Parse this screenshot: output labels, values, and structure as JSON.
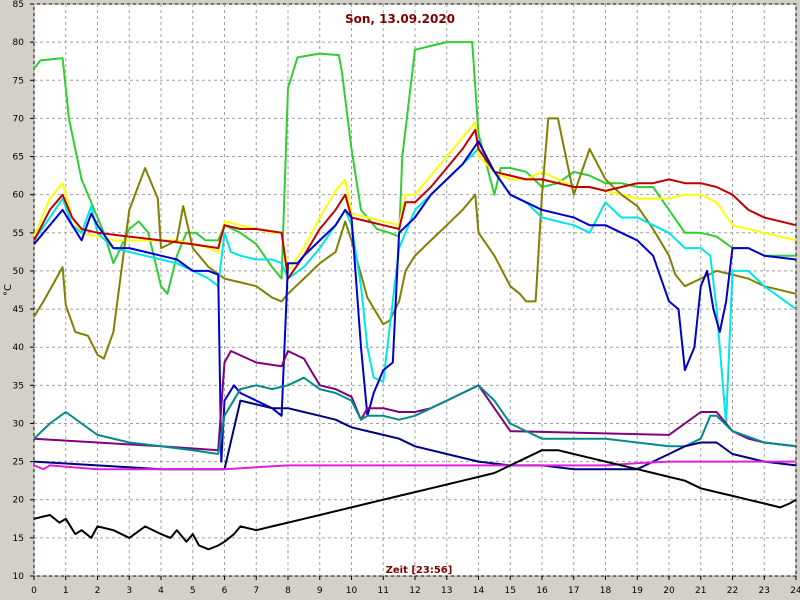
{
  "chart_data": {
    "type": "line",
    "title": "Son, 13.09.2020",
    "xlabel": "Zeit [23:56]",
    "ylabel": "°C",
    "xlim": [
      0,
      24
    ],
    "ylim": [
      10,
      85
    ],
    "xticks": [
      "0",
      "1",
      "2",
      "3",
      "4",
      "5",
      "6",
      "7",
      "8",
      "9",
      "10",
      "11",
      "12",
      "13",
      "14",
      "15",
      "16",
      "17",
      "18",
      "19",
      "20",
      "21",
      "22",
      "23",
      "24"
    ],
    "yticks": [
      "10",
      "15",
      "20",
      "25",
      "30",
      "35",
      "40",
      "45",
      "50",
      "55",
      "60",
      "65",
      "70",
      "75",
      "80",
      "85"
    ],
    "grid": true,
    "colors": {
      "background": "#ffffff",
      "frame": "#d4d0c8",
      "grid": "#a0a0a0"
    },
    "series": [
      {
        "color": "#32cd32",
        "x": [
          0,
          0.2,
          0.9,
          1.1,
          1.5,
          2.2,
          2.5,
          3.0,
          3.3,
          3.6,
          4.0,
          4.2,
          4.5,
          4.8,
          5.1,
          5.4,
          5.8,
          6.0,
          6.5,
          7.0,
          7.5,
          7.8,
          8.0,
          8.3,
          9.0,
          9.6,
          9.7,
          10.0,
          10.3,
          10.8,
          11.2,
          11.5,
          11.6,
          12.0,
          12.5,
          13.0,
          13.8,
          14.0,
          14.5,
          14.7,
          15.0,
          15.5,
          16.0,
          16.5,
          17.0,
          17.5,
          18.0,
          18.5,
          19.0,
          19.5,
          20.0,
          20.5,
          21.0,
          21.5,
          22.0,
          22.5,
          23.0,
          24.0
        ],
        "y": [
          76.5,
          77.6,
          77.9,
          70.0,
          62.0,
          55.0,
          51.0,
          55.5,
          56.5,
          55.0,
          48.0,
          47.0,
          52.0,
          55.0,
          55.0,
          54.0,
          54.0,
          56.0,
          55.0,
          53.5,
          50.5,
          49.0,
          74.0,
          78.0,
          78.5,
          78.3,
          76.0,
          66.0,
          58.0,
          55.5,
          55.0,
          54.5,
          65.0,
          79.0,
          79.5,
          80.0,
          80.0,
          68.0,
          60.0,
          63.5,
          63.5,
          63.0,
          61.0,
          61.5,
          63.0,
          62.5,
          61.5,
          61.5,
          61.0,
          61.0,
          58.0,
          55.0,
          55.0,
          54.5,
          53.0,
          53.0,
          52.0,
          52.0
        ]
      },
      {
        "color": "#ffff00",
        "x": [
          0,
          0.5,
          0.9,
          1.2,
          1.5,
          2.0,
          2.5,
          3.0,
          3.5,
          4.0,
          4.5,
          5.0,
          5.5,
          5.8,
          6.0,
          6.5,
          7.0,
          7.5,
          7.8,
          8.0,
          8.5,
          9.0,
          9.5,
          9.8,
          10.0,
          10.5,
          11.0,
          11.5,
          11.7,
          12.0,
          12.5,
          13.0,
          13.5,
          13.9,
          14.0,
          14.5,
          15.0,
          15.5,
          16.0,
          16.5,
          17.0,
          17.5,
          18.0,
          18.5,
          19.0,
          19.5,
          20.0,
          20.5,
          21.0,
          21.5,
          22.0,
          22.5,
          23.0,
          24.0
        ],
        "y": [
          54.5,
          59.5,
          61.5,
          57.0,
          55.0,
          54.5,
          54.0,
          54.0,
          54.0,
          54.0,
          54.0,
          53.5,
          53.0,
          52.5,
          56.5,
          56.0,
          55.5,
          55.0,
          55.0,
          50.0,
          53.0,
          57.0,
          60.5,
          62.0,
          57.5,
          57.0,
          56.5,
          56.0,
          60.0,
          60.0,
          62.5,
          65.0,
          67.5,
          69.5,
          65.0,
          63.0,
          62.0,
          62.0,
          63.0,
          62.0,
          61.0,
          61.0,
          60.5,
          60.0,
          59.5,
          59.5,
          59.5,
          60.0,
          60.0,
          59.0,
          56.0,
          55.5,
          55.0,
          54.0
        ]
      },
      {
        "color": "#808000",
        "x": [
          0,
          0.3,
          0.9,
          1.0,
          1.3,
          1.7,
          2.0,
          2.2,
          2.5,
          3.0,
          3.5,
          3.9,
          4.0,
          4.5,
          4.7,
          5.0,
          5.5,
          6.0,
          6.5,
          7.0,
          7.5,
          7.8,
          8.0,
          8.5,
          9.0,
          9.5,
          9.8,
          10.0,
          10.5,
          11.0,
          11.2,
          11.5,
          11.7,
          12.0,
          12.5,
          13.0,
          13.5,
          13.9,
          14.0,
          14.5,
          15.0,
          15.3,
          15.5,
          15.8,
          16.0,
          16.2,
          16.5,
          17.0,
          17.5,
          18.0,
          18.5,
          19.0,
          19.5,
          20.0,
          20.2,
          20.5,
          21.0,
          21.5,
          22.0,
          22.5,
          23.0,
          24.0
        ],
        "y": [
          44.0,
          46.0,
          50.5,
          45.5,
          42.0,
          41.5,
          39.0,
          38.5,
          42.0,
          58.0,
          63.5,
          59.5,
          53.0,
          54.0,
          58.5,
          53.0,
          50.5,
          49.0,
          48.5,
          48.0,
          46.5,
          46.0,
          47.0,
          49.0,
          51.0,
          52.5,
          56.5,
          54.0,
          46.5,
          43.0,
          43.5,
          46.0,
          50.0,
          52.0,
          54.0,
          56.0,
          58.0,
          60.0,
          55.0,
          52.0,
          48.0,
          47.0,
          46.0,
          46.0,
          60.0,
          70.0,
          70.0,
          60.0,
          66.0,
          62.0,
          60.0,
          58.5,
          55.5,
          52.0,
          49.5,
          48.0,
          49.0,
          50.0,
          49.5,
          49.0,
          48.0,
          47.0
        ]
      },
      {
        "color": "#00e5e5",
        "x": [
          0,
          0.5,
          0.9,
          1.2,
          1.5,
          1.8,
          2.0,
          2.5,
          3.0,
          3.5,
          4.0,
          4.5,
          5.0,
          5.5,
          5.8,
          6.0,
          6.2,
          6.5,
          7.0,
          7.5,
          7.8,
          8.0,
          8.5,
          9.0,
          9.5,
          9.8,
          10.0,
          10.3,
          10.5,
          10.7,
          11.0,
          11.5,
          12.0,
          12.5,
          13.0,
          13.5,
          14.0,
          14.5,
          15.0,
          15.5,
          16.0,
          16.5,
          17.0,
          17.5,
          18.0,
          18.5,
          19.0,
          19.5,
          20.0,
          20.5,
          21.0,
          21.3,
          21.5,
          21.8,
          22.0,
          22.5,
          23.0,
          24.0
        ],
        "y": [
          54.0,
          57.0,
          59.5,
          56.0,
          55.0,
          58.5,
          55.0,
          53.0,
          52.5,
          52.0,
          51.5,
          51.0,
          50.0,
          49.0,
          48.0,
          55.0,
          52.5,
          52.0,
          51.5,
          51.5,
          51.0,
          49.0,
          50.5,
          53.0,
          56.0,
          58.0,
          56.0,
          48.0,
          40.0,
          36.0,
          35.5,
          53.0,
          58.0,
          60.0,
          62.0,
          64.0,
          66.0,
          63.0,
          60.0,
          59.0,
          57.0,
          56.5,
          56.0,
          55.0,
          59.0,
          57.0,
          57.0,
          56.0,
          55.0,
          53.0,
          53.0,
          52.0,
          45.0,
          30.0,
          50.0,
          50.0,
          48.0,
          45.0
        ]
      },
      {
        "color": "#c00000",
        "x": [
          0,
          0.5,
          0.9,
          1.2,
          1.5,
          2.0,
          3.0,
          4.0,
          5.0,
          5.8,
          6.0,
          6.5,
          7.0,
          7.8,
          8.0,
          8.5,
          9.0,
          9.5,
          9.8,
          10.0,
          10.5,
          11.0,
          11.5,
          11.7,
          12.0,
          12.5,
          13.0,
          13.5,
          13.9,
          14.0,
          14.5,
          15.0,
          15.5,
          16.0,
          16.5,
          17.0,
          17.5,
          18.0,
          18.5,
          19.0,
          19.5,
          20.0,
          20.5,
          21.0,
          21.5,
          22.0,
          22.5,
          23.0,
          24.0
        ],
        "y": [
          54.0,
          58.0,
          60.0,
          57.0,
          55.5,
          55.0,
          54.5,
          54.0,
          53.5,
          53.0,
          56.0,
          55.5,
          55.5,
          55.0,
          49.0,
          52.0,
          55.5,
          58.0,
          60.0,
          57.0,
          56.5,
          56.0,
          55.5,
          59.0,
          59.0,
          61.0,
          63.5,
          66.0,
          68.5,
          66.0,
          63.0,
          62.5,
          62.0,
          62.0,
          61.5,
          61.0,
          61.0,
          60.5,
          61.0,
          61.5,
          61.5,
          62.0,
          61.5,
          61.5,
          61.0,
          60.0,
          58.0,
          57.0,
          56.0
        ]
      },
      {
        "color": "#0000cd",
        "x": [
          0,
          0.3,
          0.9,
          1.2,
          1.5,
          1.8,
          2.0,
          2.5,
          3.0,
          3.5,
          4.0,
          4.5,
          5.0,
          5.5,
          5.8,
          5.9,
          6.0,
          6.3,
          6.5,
          7.0,
          7.5,
          7.8,
          8.0,
          8.3,
          8.5,
          9.0,
          9.5,
          9.8,
          10.0,
          10.3,
          10.5,
          10.7,
          11.0,
          11.3,
          11.5,
          12.0,
          12.5,
          13.0,
          13.5,
          14.0,
          14.5,
          15.0,
          15.5,
          16.0,
          16.5,
          17.0,
          17.5,
          18.0,
          18.5,
          19.0,
          19.5,
          20.0,
          20.3,
          20.5,
          20.8,
          21.0,
          21.2,
          21.4,
          21.6,
          21.8,
          22.0,
          22.5,
          23.0,
          24.0
        ],
        "y": [
          53.5,
          55.0,
          58.0,
          56.0,
          54.0,
          57.5,
          56.0,
          53.0,
          53.0,
          52.5,
          52.0,
          51.5,
          50.0,
          50.0,
          49.5,
          25.0,
          33.0,
          35.0,
          34.0,
          33.0,
          32.0,
          31.0,
          51.0,
          51.0,
          52.0,
          54.0,
          56.0,
          58.0,
          57.0,
          40.0,
          31.0,
          34.0,
          37.0,
          38.0,
          55.0,
          57.0,
          60.0,
          62.0,
          64.0,
          67.0,
          63.0,
          60.0,
          59.0,
          58.0,
          57.5,
          57.0,
          56.0,
          56.0,
          55.0,
          54.0,
          52.0,
          46.0,
          45.0,
          37.0,
          40.0,
          48.0,
          50.0,
          45.0,
          42.0,
          46.0,
          53.0,
          53.0,
          52.0,
          51.5
        ]
      },
      {
        "color": "#800080",
        "x": [
          0,
          2.0,
          4.0,
          5.8,
          6.0,
          6.2,
          7.0,
          7.8,
          8.0,
          8.5,
          9.0,
          9.5,
          10.0,
          10.3,
          10.5,
          11.0,
          11.5,
          12.0,
          12.5,
          13.0,
          13.5,
          14.0,
          14.5,
          15.0,
          20.0,
          21.0,
          21.5,
          22.0,
          22.5,
          23.0,
          24.0
        ],
        "y": [
          28.0,
          27.5,
          27.0,
          26.5,
          38.0,
          39.5,
          38.0,
          37.5,
          39.5,
          38.5,
          35.0,
          34.5,
          33.5,
          30.5,
          32.0,
          32.0,
          31.5,
          31.5,
          32.0,
          33.0,
          34.0,
          35.0,
          32.0,
          29.0,
          28.5,
          31.5,
          31.5,
          29.0,
          28.0,
          27.5,
          27.0
        ]
      },
      {
        "color": "#008b8b",
        "x": [
          0,
          0.5,
          1.0,
          1.5,
          2.0,
          3.0,
          4.0,
          5.0,
          5.8,
          6.0,
          6.5,
          7.0,
          7.5,
          8.0,
          8.5,
          9.0,
          9.5,
          10.0,
          10.3,
          10.5,
          11.0,
          11.5,
          12.0,
          12.5,
          13.0,
          13.5,
          14.0,
          14.5,
          15.0,
          15.5,
          16.0,
          17.0,
          18.0,
          19.0,
          20.0,
          20.5,
          21.0,
          21.3,
          21.5,
          22.0,
          23.0,
          24.0
        ],
        "y": [
          28.0,
          30.0,
          31.5,
          30.0,
          28.5,
          27.5,
          27.0,
          26.5,
          26.0,
          31.0,
          34.5,
          35.0,
          34.5,
          35.0,
          36.0,
          34.5,
          34.0,
          33.0,
          30.5,
          31.0,
          31.0,
          30.5,
          31.0,
          32.0,
          33.0,
          34.0,
          35.0,
          33.0,
          30.0,
          29.0,
          28.0,
          28.0,
          28.0,
          27.5,
          27.0,
          27.0,
          28.0,
          31.0,
          31.0,
          29.0,
          27.5,
          27.0
        ]
      },
      {
        "color": "#000080",
        "x": [
          0,
          2.0,
          4.0,
          5.8,
          6.0,
          6.5,
          7.0,
          7.5,
          8.0,
          8.5,
          9.0,
          9.5,
          10.0,
          10.5,
          11.0,
          11.5,
          12.0,
          13.0,
          14.0,
          15.0,
          16.0,
          17.0,
          18.0,
          19.0,
          20.0,
          20.5,
          21.0,
          21.5,
          22.0,
          23.0,
          24.0
        ],
        "y": [
          25.0,
          24.5,
          24.0,
          24.0,
          24.0,
          33.0,
          32.5,
          32.0,
          32.0,
          31.5,
          31.0,
          30.5,
          29.5,
          29.0,
          28.5,
          28.0,
          27.0,
          26.0,
          25.0,
          24.5,
          24.5,
          24.0,
          24.0,
          24.0,
          26.0,
          27.0,
          27.5,
          27.5,
          26.0,
          25.0,
          24.5
        ]
      },
      {
        "color": "#e020e0",
        "x": [
          0,
          0.3,
          0.5,
          2.0,
          4.0,
          6.0,
          8.0,
          10.0,
          12.0,
          14.0,
          16.0,
          18.0,
          19.0,
          20.0,
          21.0,
          22.0,
          24.0
        ],
        "y": [
          24.5,
          24.0,
          24.5,
          24.0,
          24.0,
          24.0,
          24.5,
          24.5,
          24.5,
          24.5,
          24.5,
          24.5,
          24.8,
          25.0,
          25.0,
          25.0,
          25.0
        ]
      },
      {
        "color": "#000000",
        "x": [
          0,
          0.3,
          0.5,
          0.8,
          1.0,
          1.3,
          1.5,
          1.8,
          2.0,
          2.5,
          3.0,
          3.5,
          4.0,
          4.3,
          4.5,
          4.8,
          5.0,
          5.2,
          5.5,
          5.8,
          6.0,
          6.3,
          6.5,
          7.0,
          7.5,
          8.0,
          8.5,
          9.0,
          9.5,
          10.0,
          10.5,
          11.0,
          11.5,
          12.0,
          12.5,
          13.0,
          13.5,
          14.0,
          14.5,
          15.0,
          15.5,
          16.0,
          16.5,
          17.0,
          17.5,
          18.0,
          18.5,
          19.0,
          19.5,
          20.0,
          20.5,
          21.0,
          21.5,
          22.0,
          22.5,
          23.0,
          23.5,
          23.8,
          24.0
        ],
        "y": [
          17.5,
          17.8,
          18.0,
          17.0,
          17.5,
          15.5,
          16.0,
          15.0,
          16.5,
          16.0,
          15.0,
          16.5,
          15.5,
          15.0,
          16.0,
          14.5,
          15.5,
          14.0,
          13.5,
          14.0,
          14.5,
          15.5,
          16.5,
          16.0,
          16.5,
          17.0,
          17.5,
          18.0,
          18.5,
          19.0,
          19.5,
          20.0,
          20.5,
          21.0,
          21.5,
          22.0,
          22.5,
          23.0,
          23.5,
          24.5,
          25.5,
          26.5,
          26.5,
          26.0,
          25.5,
          25.0,
          24.5,
          24.0,
          23.5,
          23.0,
          22.5,
          21.5,
          21.0,
          20.5,
          20.0,
          19.5,
          19.0,
          19.5,
          20.0
        ]
      }
    ]
  }
}
